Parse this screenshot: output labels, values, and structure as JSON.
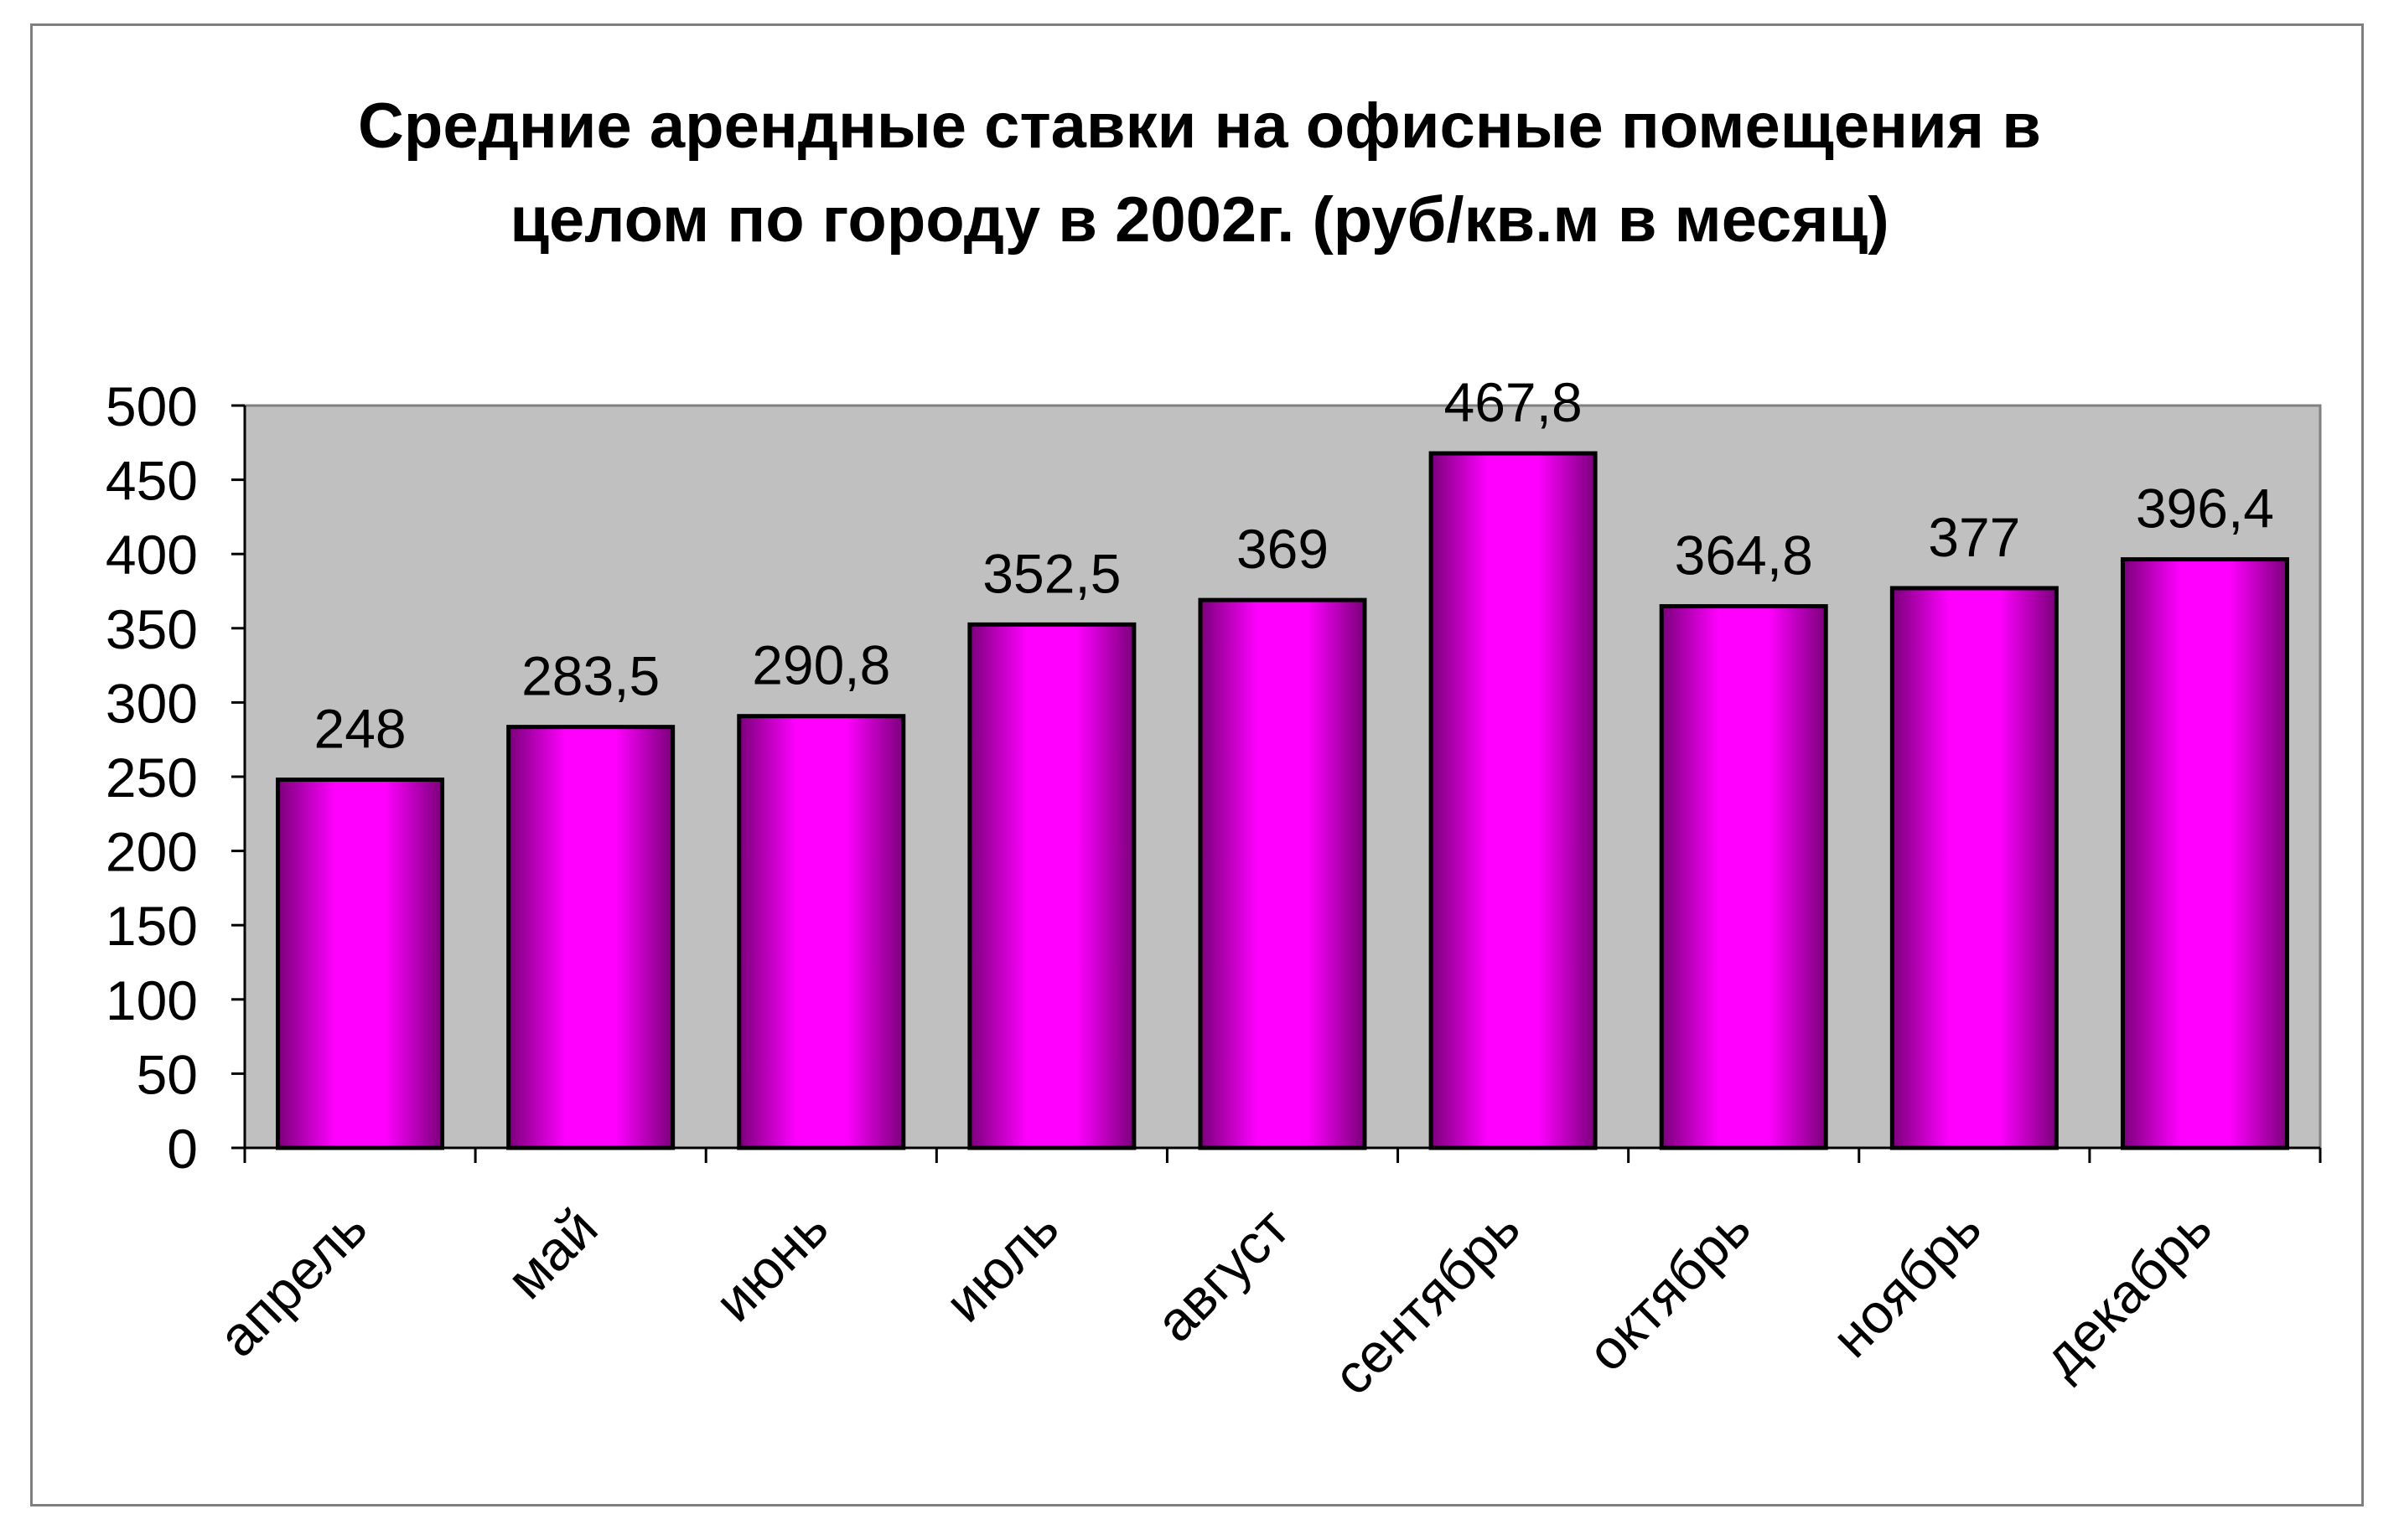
{
  "chart_data": {
    "type": "bar",
    "title": "Средние арендные ставки на офисные помещения в целом по городу в 2002г. (руб/кв.м в месяц)",
    "title_lines": [
      "Средние арендные ставки на офисные помещения в",
      "целом по городу в 2002г. (руб/кв.м в месяц)"
    ],
    "categories": [
      "апрель",
      "май",
      "июнь",
      "июль",
      "август",
      "сентябрь",
      "октябрь",
      "ноябрь",
      "декабрь"
    ],
    "values": [
      248,
      283.5,
      290.8,
      352.5,
      369,
      467.8,
      364.8,
      377,
      396.4
    ],
    "data_labels": [
      "248",
      "283,5",
      "290,8",
      "352,5",
      "369",
      "467,8",
      "364,8",
      "377",
      "396,4"
    ],
    "yticks": [
      0,
      50,
      100,
      150,
      200,
      250,
      300,
      350,
      400,
      450,
      500
    ],
    "ylim": [
      0,
      500
    ],
    "xlabel": "",
    "ylabel": "",
    "grid": false,
    "legend": "none",
    "colors": {
      "bar_fill": "#ff00ff",
      "bar_shade": "#7a007a",
      "plot_background": "#c0c0c0",
      "bar_outline": "#000000"
    }
  }
}
